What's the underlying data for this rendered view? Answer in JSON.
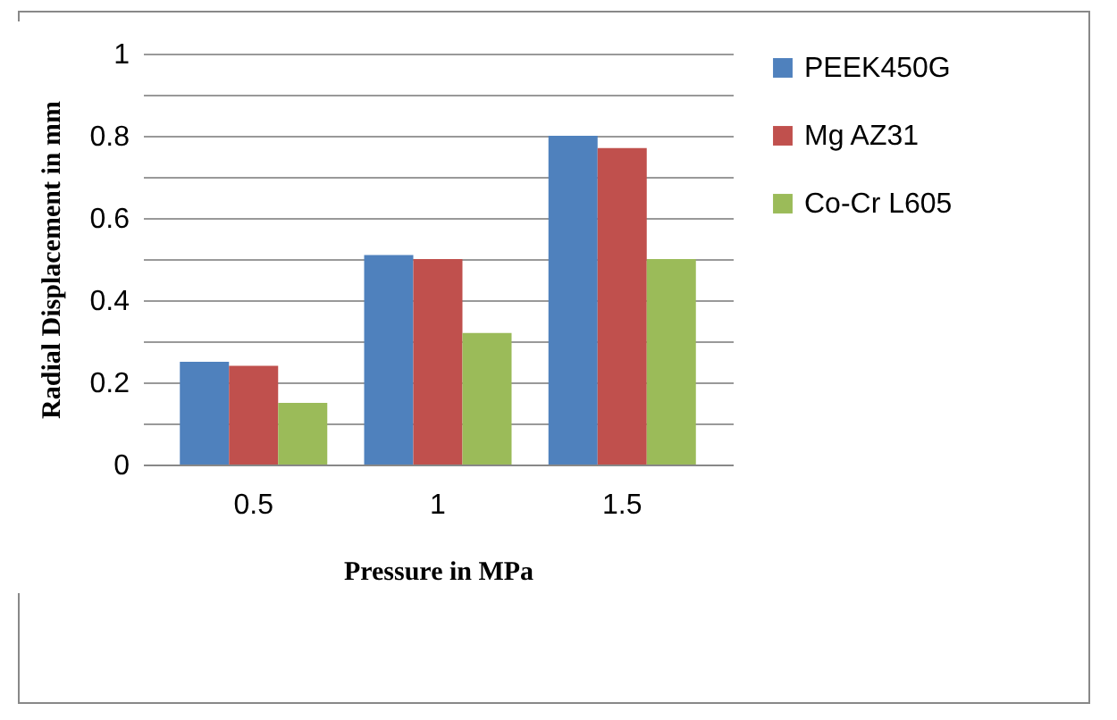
{
  "chart_data": {
    "type": "bar",
    "xlabel": "Pressure in MPa",
    "ylabel": "Radial Displacement in mm",
    "categories": [
      "0.5",
      "1",
      "1.5"
    ],
    "series": [
      {
        "name": "PEEK450G",
        "color": "#4f81bd",
        "values": [
          0.25,
          0.51,
          0.8
        ]
      },
      {
        "name": "Mg AZ31",
        "color": "#c0504d",
        "values": [
          0.24,
          0.5,
          0.77
        ]
      },
      {
        "name": "Co-Cr L605",
        "color": "#9bbb59",
        "values": [
          0.15,
          0.32,
          0.5
        ]
      }
    ],
    "ylim": [
      0,
      1
    ],
    "yticks": [
      0,
      {
        "value": 0.1,
        "label": null
      },
      0.2,
      {
        "value": 0.3,
        "label": null
      },
      0.4,
      {
        "value": 0.5,
        "label": null
      },
      0.6,
      {
        "value": 0.7,
        "label": null
      },
      0.8,
      {
        "value": 0.9,
        "label": null
      },
      1
    ],
    "grid": "y",
    "legend": "right"
  }
}
